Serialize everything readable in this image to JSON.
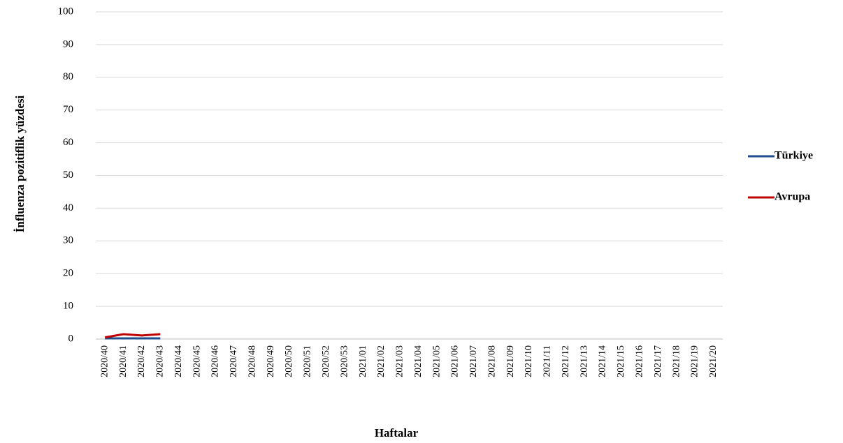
{
  "chart_data": {
    "type": "line",
    "x_label": "Haftalar",
    "y_label": "İnfluenza pozitiflik yüzdesi",
    "categories": [
      "2020/40",
      "2020/41",
      "2020/42",
      "2020/43",
      "2020/44",
      "2020/45",
      "2020/46",
      "2020/47",
      "2020/48",
      "2020/49",
      "2020/50",
      "2020/51",
      "2020/52",
      "2020/53",
      "2021/01",
      "2021/02",
      "2021/03",
      "2021/04",
      "2021/05",
      "2021/06",
      "2021/07",
      "2021/08",
      "2021/09",
      "2021/10",
      "2021/11",
      "2021/12",
      "2021/13",
      "2021/14",
      "2021/15",
      "2021/16",
      "2021/17",
      "2021/18",
      "2021/19",
      "2021/20"
    ],
    "series": [
      {
        "name": "Türkiye",
        "color": "#1f4e8c",
        "values": [
          0.2,
          0.2,
          0.2,
          0.2,
          null,
          null,
          null,
          null,
          null,
          null,
          null,
          null,
          null,
          null,
          null,
          null,
          null,
          null,
          null,
          null,
          null,
          null,
          null,
          null,
          null,
          null,
          null,
          null,
          null,
          null,
          null,
          null,
          null,
          null
        ]
      },
      {
        "name": "Avrupa",
        "color": "#c00000",
        "values": [
          0.5,
          1.5,
          1.1,
          1.5,
          null,
          null,
          null,
          null,
          null,
          null,
          null,
          null,
          null,
          null,
          null,
          null,
          null,
          null,
          null,
          null,
          null,
          null,
          null,
          null,
          null,
          null,
          null,
          null,
          null,
          null,
          null,
          null,
          null,
          null
        ]
      }
    ],
    "ylim": [
      0,
      100
    ],
    "yticks": [
      0,
      10,
      20,
      30,
      40,
      50,
      60,
      70,
      80,
      90,
      100
    ],
    "grid": true,
    "legend": "right"
  }
}
